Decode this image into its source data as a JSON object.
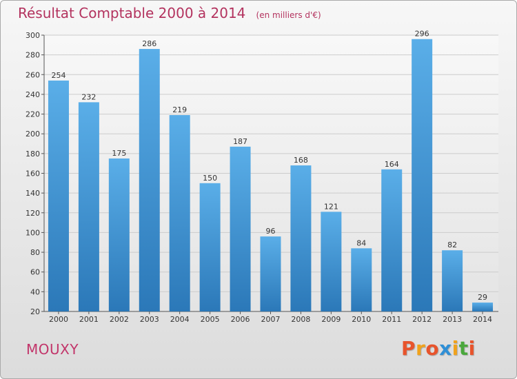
{
  "header": {
    "title": "Résultat Comptable 2000 à 2014",
    "unit": "(en milliers d'€)"
  },
  "footer": {
    "commune": "MOUXY",
    "logo_text": "Proxiti"
  },
  "colors": {
    "title": "#b3325e",
    "bar_top": "#5aaee8",
    "bar_bottom": "#2b78b8",
    "grid": "#cccccc",
    "logo_letters": [
      "#e8542c",
      "#f0a21c",
      "#e8542c",
      "#2f8fd6",
      "#f0a21c",
      "#4aa83c",
      "#e8542c"
    ]
  },
  "chart_data": {
    "type": "bar",
    "title": "Résultat Comptable 2000 à 2014",
    "subtitle": "(en milliers d'€)",
    "categories": [
      "2000",
      "2001",
      "2002",
      "2003",
      "2004",
      "2005",
      "2006",
      "2007",
      "2008",
      "2009",
      "2010",
      "2011",
      "2012",
      "2013",
      "2014"
    ],
    "values": [
      254,
      232,
      175,
      286,
      219,
      150,
      187,
      96,
      168,
      121,
      84,
      164,
      296,
      82,
      29
    ],
    "ylim": [
      20,
      300
    ],
    "yticks": [
      20,
      40,
      60,
      80,
      100,
      120,
      140,
      160,
      180,
      200,
      220,
      240,
      260,
      280,
      300
    ],
    "grid": true,
    "legend": "none"
  }
}
